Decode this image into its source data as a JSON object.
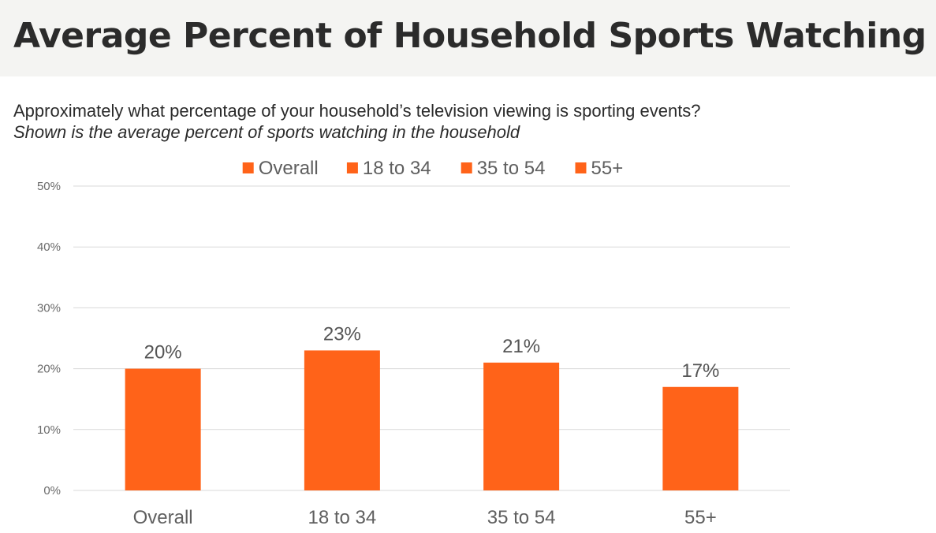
{
  "header": {
    "title": "Average Percent of Household Sports Watching"
  },
  "subtitle": {
    "question": "Approximately what percentage of your household’s television viewing is sporting events?",
    "note": "Shown is the average percent of sports watching in the household"
  },
  "colors": {
    "bar": "#ff6319",
    "grid": "#d9d9d9",
    "title_band": "#f4f4f2"
  },
  "chart_data": {
    "type": "bar",
    "categories": [
      "Overall",
      "18 to 34",
      "35 to 54",
      "55+"
    ],
    "series": [
      {
        "name": "Overall",
        "values": [
          20,
          null,
          null,
          null
        ]
      },
      {
        "name": "18 to 34",
        "values": [
          null,
          23,
          null,
          null
        ]
      },
      {
        "name": "35 to 54",
        "values": [
          null,
          null,
          21,
          null
        ]
      },
      {
        "name": "55+",
        "values": [
          null,
          null,
          null,
          17
        ]
      }
    ],
    "values": [
      20,
      23,
      21,
      17
    ],
    "data_labels": [
      "20%",
      "23%",
      "21%",
      "17%"
    ],
    "ylim": [
      0,
      50
    ],
    "yticks": [
      0,
      10,
      20,
      30,
      40,
      50
    ],
    "ytick_labels": [
      "0%",
      "10%",
      "20%",
      "30%",
      "40%",
      "50%"
    ],
    "legend": [
      "Overall",
      "18 to 34",
      "35 to 54",
      "55+"
    ],
    "legend_position": "top",
    "grid": true
  }
}
